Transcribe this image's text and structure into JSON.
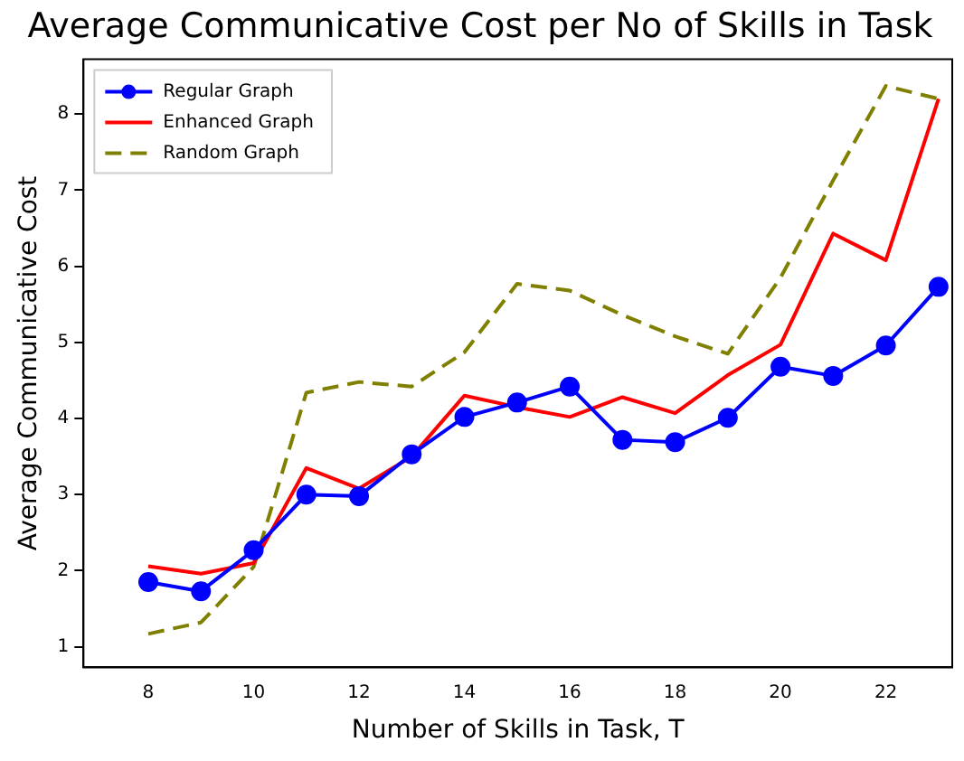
{
  "chart_data": {
    "type": "line",
    "title": "Average Communicative Cost per No of Skills in Task",
    "xlabel": "Number of Skills in Task, T",
    "ylabel": "Average Communicative Cost",
    "x": [
      8,
      9,
      10,
      11,
      12,
      13,
      14,
      15,
      16,
      17,
      18,
      19,
      20,
      21,
      22,
      23
    ],
    "series": [
      {
        "name": "Regular Graph",
        "color": "#0000ff",
        "marker": "circle",
        "line_style": "solid",
        "values": [
          1.85,
          1.73,
          2.27,
          3.0,
          2.98,
          3.53,
          4.02,
          4.21,
          4.42,
          3.72,
          3.69,
          4.01,
          4.68,
          4.56,
          4.96,
          5.73
        ]
      },
      {
        "name": "Enhanced Graph",
        "color": "#ff0000",
        "marker": "none",
        "line_style": "solid",
        "values": [
          2.06,
          1.96,
          2.1,
          3.35,
          3.08,
          3.5,
          4.3,
          4.15,
          4.02,
          4.28,
          4.07,
          4.57,
          4.97,
          6.43,
          6.08,
          8.2
        ]
      },
      {
        "name": "Random Graph",
        "color": "#808000",
        "marker": "none",
        "line_style": "dashed",
        "values": [
          1.17,
          1.32,
          2.05,
          4.34,
          4.48,
          4.42,
          4.87,
          5.77,
          5.68,
          5.36,
          5.08,
          4.85,
          5.85,
          7.13,
          8.37,
          8.2
        ]
      }
    ],
    "xlim": [
      6.77,
      23.26
    ],
    "xticks": [
      8,
      10,
      12,
      14,
      16,
      18,
      20,
      22
    ],
    "ylim": [
      0.73,
      8.72
    ],
    "yticks": [
      1,
      2,
      3,
      4,
      5,
      6,
      7,
      8
    ],
    "grid": false,
    "legend": "top left"
  }
}
